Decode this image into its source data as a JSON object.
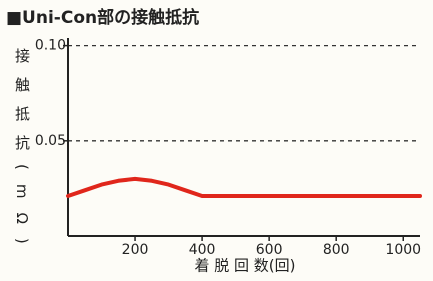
{
  "chart_data": {
    "type": "line",
    "title": "■Uni-Con部の接触抵抗",
    "y_label": "接触抵抗(mΩ)",
    "x_label": "着 脱 回 数(回)",
    "x": [
      0,
      50,
      100,
      150,
      200,
      250,
      300,
      350,
      400,
      500,
      600,
      700,
      800,
      900,
      1000,
      1050
    ],
    "series": [
      {
        "color": "#e0261b",
        "values": [
          0.021,
          0.024,
          0.027,
          0.029,
          0.03,
          0.029,
          0.027,
          0.024,
          0.021,
          0.021,
          0.021,
          0.021,
          0.021,
          0.021,
          0.021,
          0.021
        ]
      }
    ],
    "xlim": [
      0,
      1050
    ],
    "xticks": [
      200,
      400,
      600,
      800,
      1000
    ],
    "ylim": [
      0,
      0.104
    ],
    "yticks": [
      {
        "value": 0.05,
        "label": "0.05"
      },
      {
        "value": 0.1,
        "label": "0.10"
      }
    ],
    "grid": true
  }
}
